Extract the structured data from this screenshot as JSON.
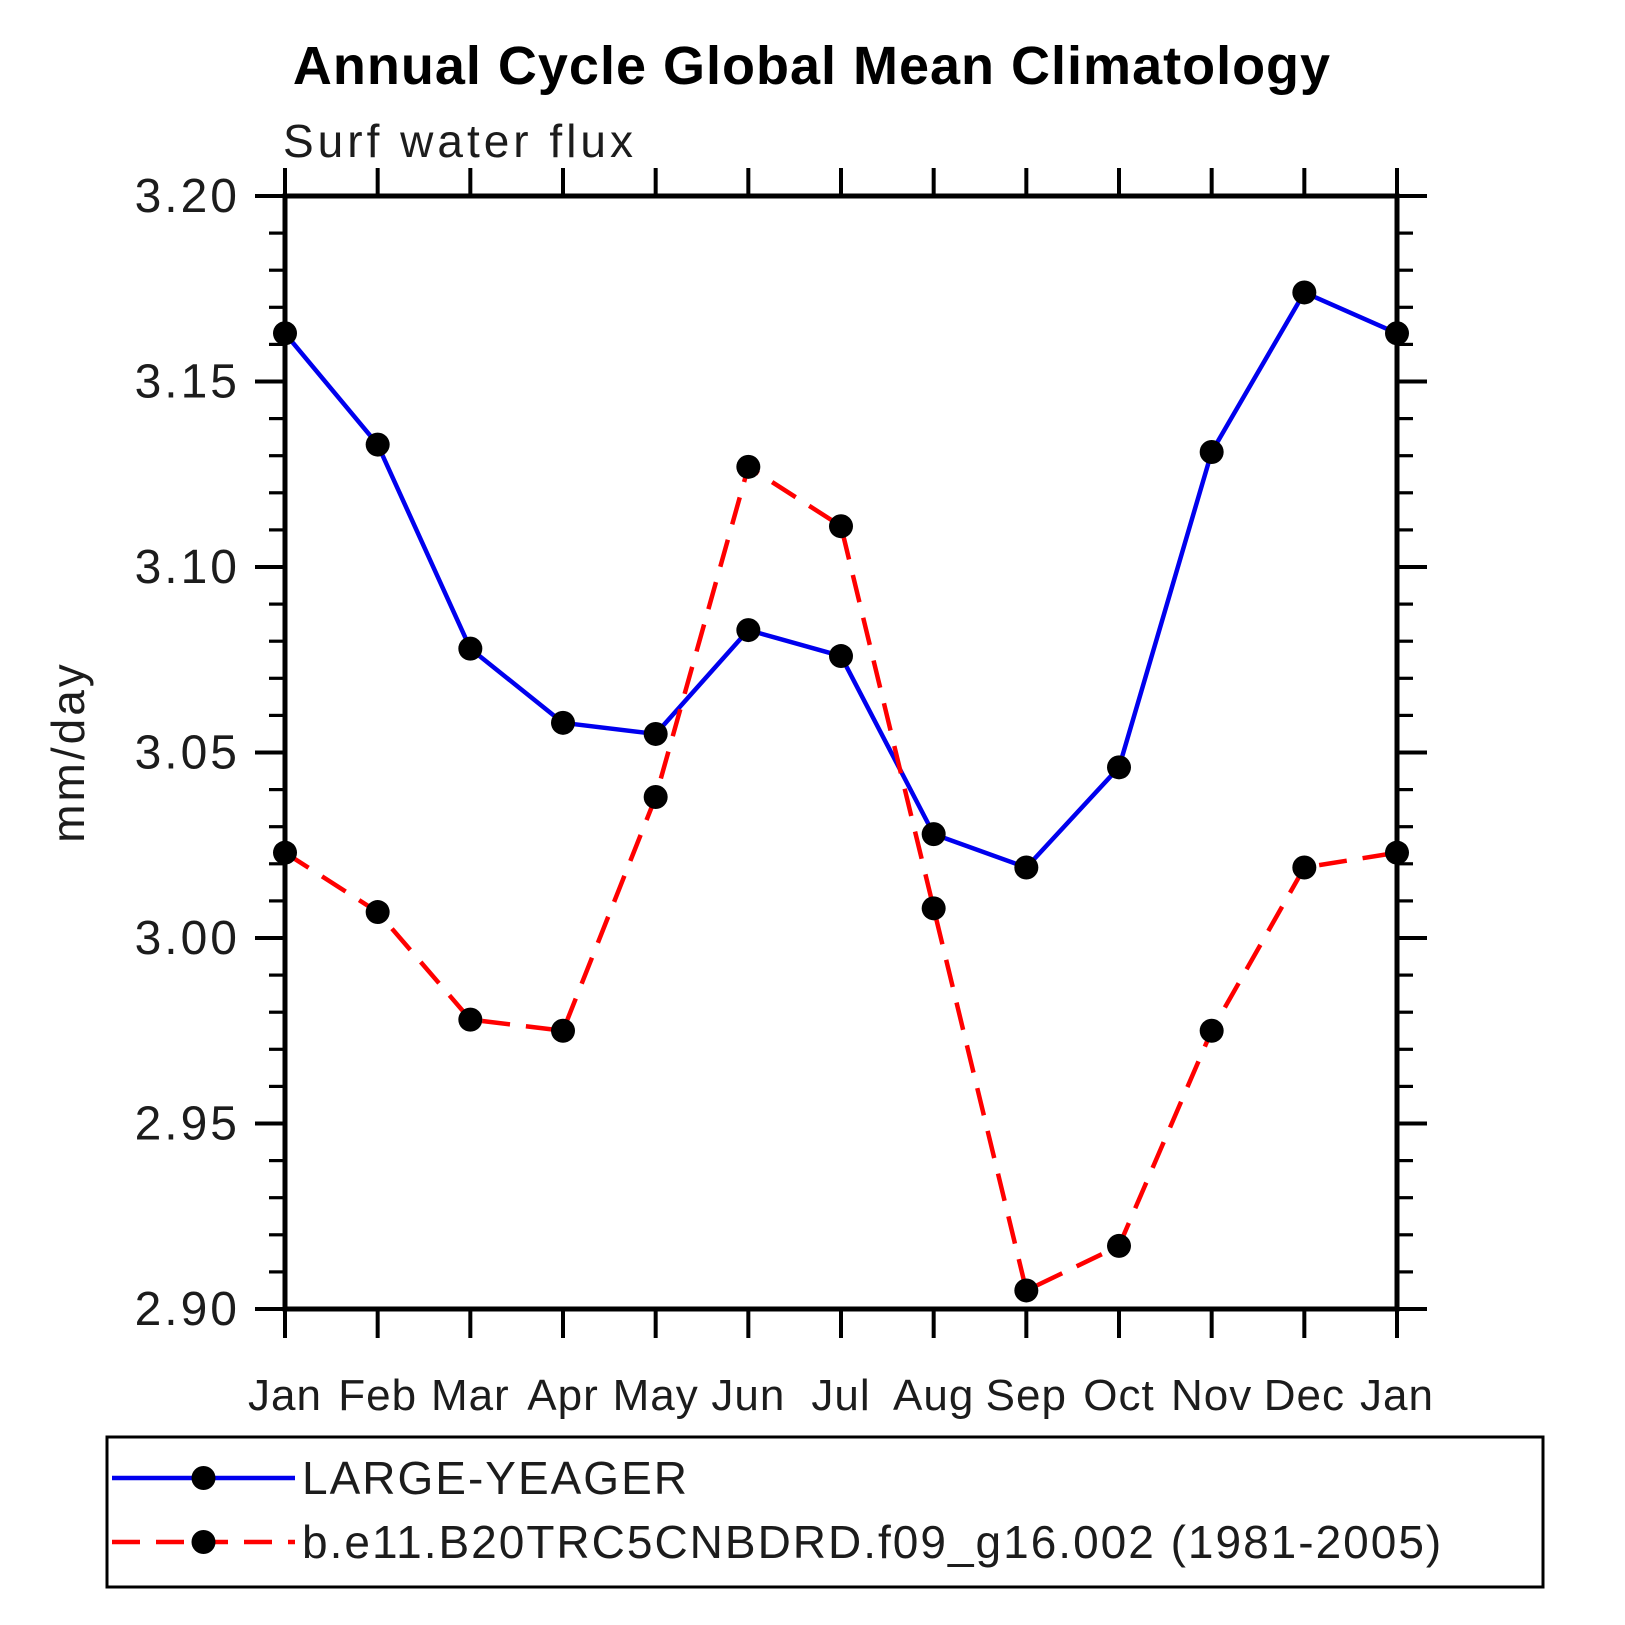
{
  "chart_data": {
    "type": "line",
    "title": "Annual Cycle Global Mean Climatology",
    "subtitle": "Surf water flux",
    "ylabel": "mm/day",
    "x_tick_labels": [
      "Jan",
      "Feb",
      "Mar",
      "Apr",
      "May",
      "Jun",
      "Jul",
      "Aug",
      "Sep",
      "Oct",
      "Nov",
      "Dec",
      "Jan"
    ],
    "y_tick_labels": [
      "3.20",
      "3.15",
      "3.10",
      "3.05",
      "3.00",
      "2.95",
      "2.90"
    ],
    "ylim": [
      2.9,
      3.2
    ],
    "y_major_step": 0.05,
    "y_minor_step": 0.01,
    "grid": "off",
    "legend_position": "bottom",
    "axis_color": "#000000",
    "marker_color": "#000000",
    "series": [
      {
        "name": "LARGE-YEAGER",
        "color": "#0000ee",
        "style": "solid",
        "values": [
          3.163,
          3.133,
          3.078,
          3.058,
          3.055,
          3.083,
          3.076,
          3.028,
          3.019,
          3.046,
          3.131,
          3.174,
          3.163
        ]
      },
      {
        "name": "b.e11.B20TRC5CNBDRD.f09_g16.002 (1981-2005)",
        "color": "#ff0000",
        "style": "dashed",
        "values": [
          3.023,
          3.007,
          2.978,
          2.975,
          3.038,
          3.127,
          3.111,
          3.008,
          2.905,
          2.917,
          2.975,
          3.019,
          3.023
        ]
      }
    ]
  }
}
